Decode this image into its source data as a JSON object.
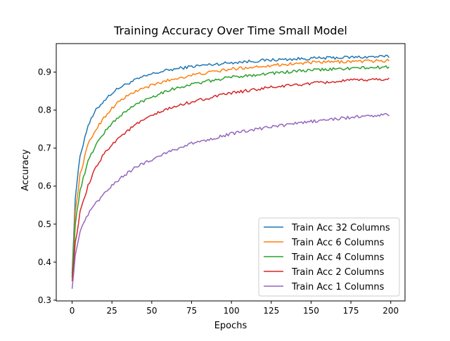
{
  "chart_data": {
    "type": "line",
    "title": "Training Accuracy Over Time Small Model",
    "xlabel": "Epochs",
    "ylabel": "Accuracy",
    "xlim": [
      -9.95,
      208.95
    ],
    "ylim": [
      0.298,
      0.975
    ],
    "xticks": [
      0,
      25,
      50,
      75,
      100,
      125,
      150,
      175,
      200
    ],
    "yticks": [
      0.3,
      0.4,
      0.5,
      0.6,
      0.7,
      0.8,
      0.9
    ],
    "grid": false,
    "legend_position": "lower-right",
    "epochs": 199,
    "series": [
      {
        "name": "Train Acc 32 Columns",
        "color": "#1f77b4",
        "key_points": [
          [
            0,
            0.37
          ],
          [
            2,
            0.57
          ],
          [
            5,
            0.68
          ],
          [
            10,
            0.76
          ],
          [
            15,
            0.8
          ],
          [
            20,
            0.825
          ],
          [
            25,
            0.845
          ],
          [
            30,
            0.86
          ],
          [
            40,
            0.88
          ],
          [
            50,
            0.895
          ],
          [
            60,
            0.905
          ],
          [
            75,
            0.915
          ],
          [
            100,
            0.925
          ],
          [
            125,
            0.932
          ],
          [
            150,
            0.936
          ],
          [
            175,
            0.939
          ],
          [
            199,
            0.941
          ]
        ]
      },
      {
        "name": "Train Acc 6 Columns",
        "color": "#ff7f0e",
        "key_points": [
          [
            0,
            0.36
          ],
          [
            2,
            0.53
          ],
          [
            5,
            0.63
          ],
          [
            10,
            0.71
          ],
          [
            15,
            0.75
          ],
          [
            20,
            0.78
          ],
          [
            25,
            0.805
          ],
          [
            30,
            0.825
          ],
          [
            40,
            0.85
          ],
          [
            50,
            0.865
          ],
          [
            60,
            0.878
          ],
          [
            75,
            0.892
          ],
          [
            100,
            0.908
          ],
          [
            125,
            0.918
          ],
          [
            150,
            0.925
          ],
          [
            175,
            0.928
          ],
          [
            199,
            0.93
          ]
        ]
      },
      {
        "name": "Train Acc 4 Columns",
        "color": "#2ca02c",
        "key_points": [
          [
            0,
            0.36
          ],
          [
            2,
            0.5
          ],
          [
            5,
            0.59
          ],
          [
            10,
            0.665
          ],
          [
            15,
            0.71
          ],
          [
            20,
            0.74
          ],
          [
            25,
            0.765
          ],
          [
            30,
            0.785
          ],
          [
            40,
            0.815
          ],
          [
            50,
            0.835
          ],
          [
            60,
            0.852
          ],
          [
            75,
            0.868
          ],
          [
            100,
            0.887
          ],
          [
            125,
            0.897
          ],
          [
            150,
            0.905
          ],
          [
            175,
            0.91
          ],
          [
            199,
            0.913
          ]
        ]
      },
      {
        "name": "Train Acc 2 Columns",
        "color": "#d62728",
        "key_points": [
          [
            0,
            0.35
          ],
          [
            2,
            0.45
          ],
          [
            5,
            0.53
          ],
          [
            10,
            0.6
          ],
          [
            15,
            0.65
          ],
          [
            20,
            0.685
          ],
          [
            25,
            0.71
          ],
          [
            30,
            0.73
          ],
          [
            40,
            0.762
          ],
          [
            50,
            0.785
          ],
          [
            60,
            0.803
          ],
          [
            75,
            0.822
          ],
          [
            100,
            0.845
          ],
          [
            125,
            0.86
          ],
          [
            150,
            0.87
          ],
          [
            175,
            0.878
          ],
          [
            199,
            0.882
          ]
        ]
      },
      {
        "name": "Train Acc 1 Columns",
        "color": "#9467bd",
        "key_points": [
          [
            0,
            0.33
          ],
          [
            2,
            0.42
          ],
          [
            5,
            0.48
          ],
          [
            10,
            0.525
          ],
          [
            15,
            0.555
          ],
          [
            20,
            0.58
          ],
          [
            25,
            0.6
          ],
          [
            30,
            0.62
          ],
          [
            40,
            0.65
          ],
          [
            50,
            0.67
          ],
          [
            60,
            0.69
          ],
          [
            75,
            0.712
          ],
          [
            100,
            0.738
          ],
          [
            125,
            0.756
          ],
          [
            150,
            0.77
          ],
          [
            175,
            0.781
          ],
          [
            199,
            0.788
          ]
        ]
      }
    ]
  }
}
